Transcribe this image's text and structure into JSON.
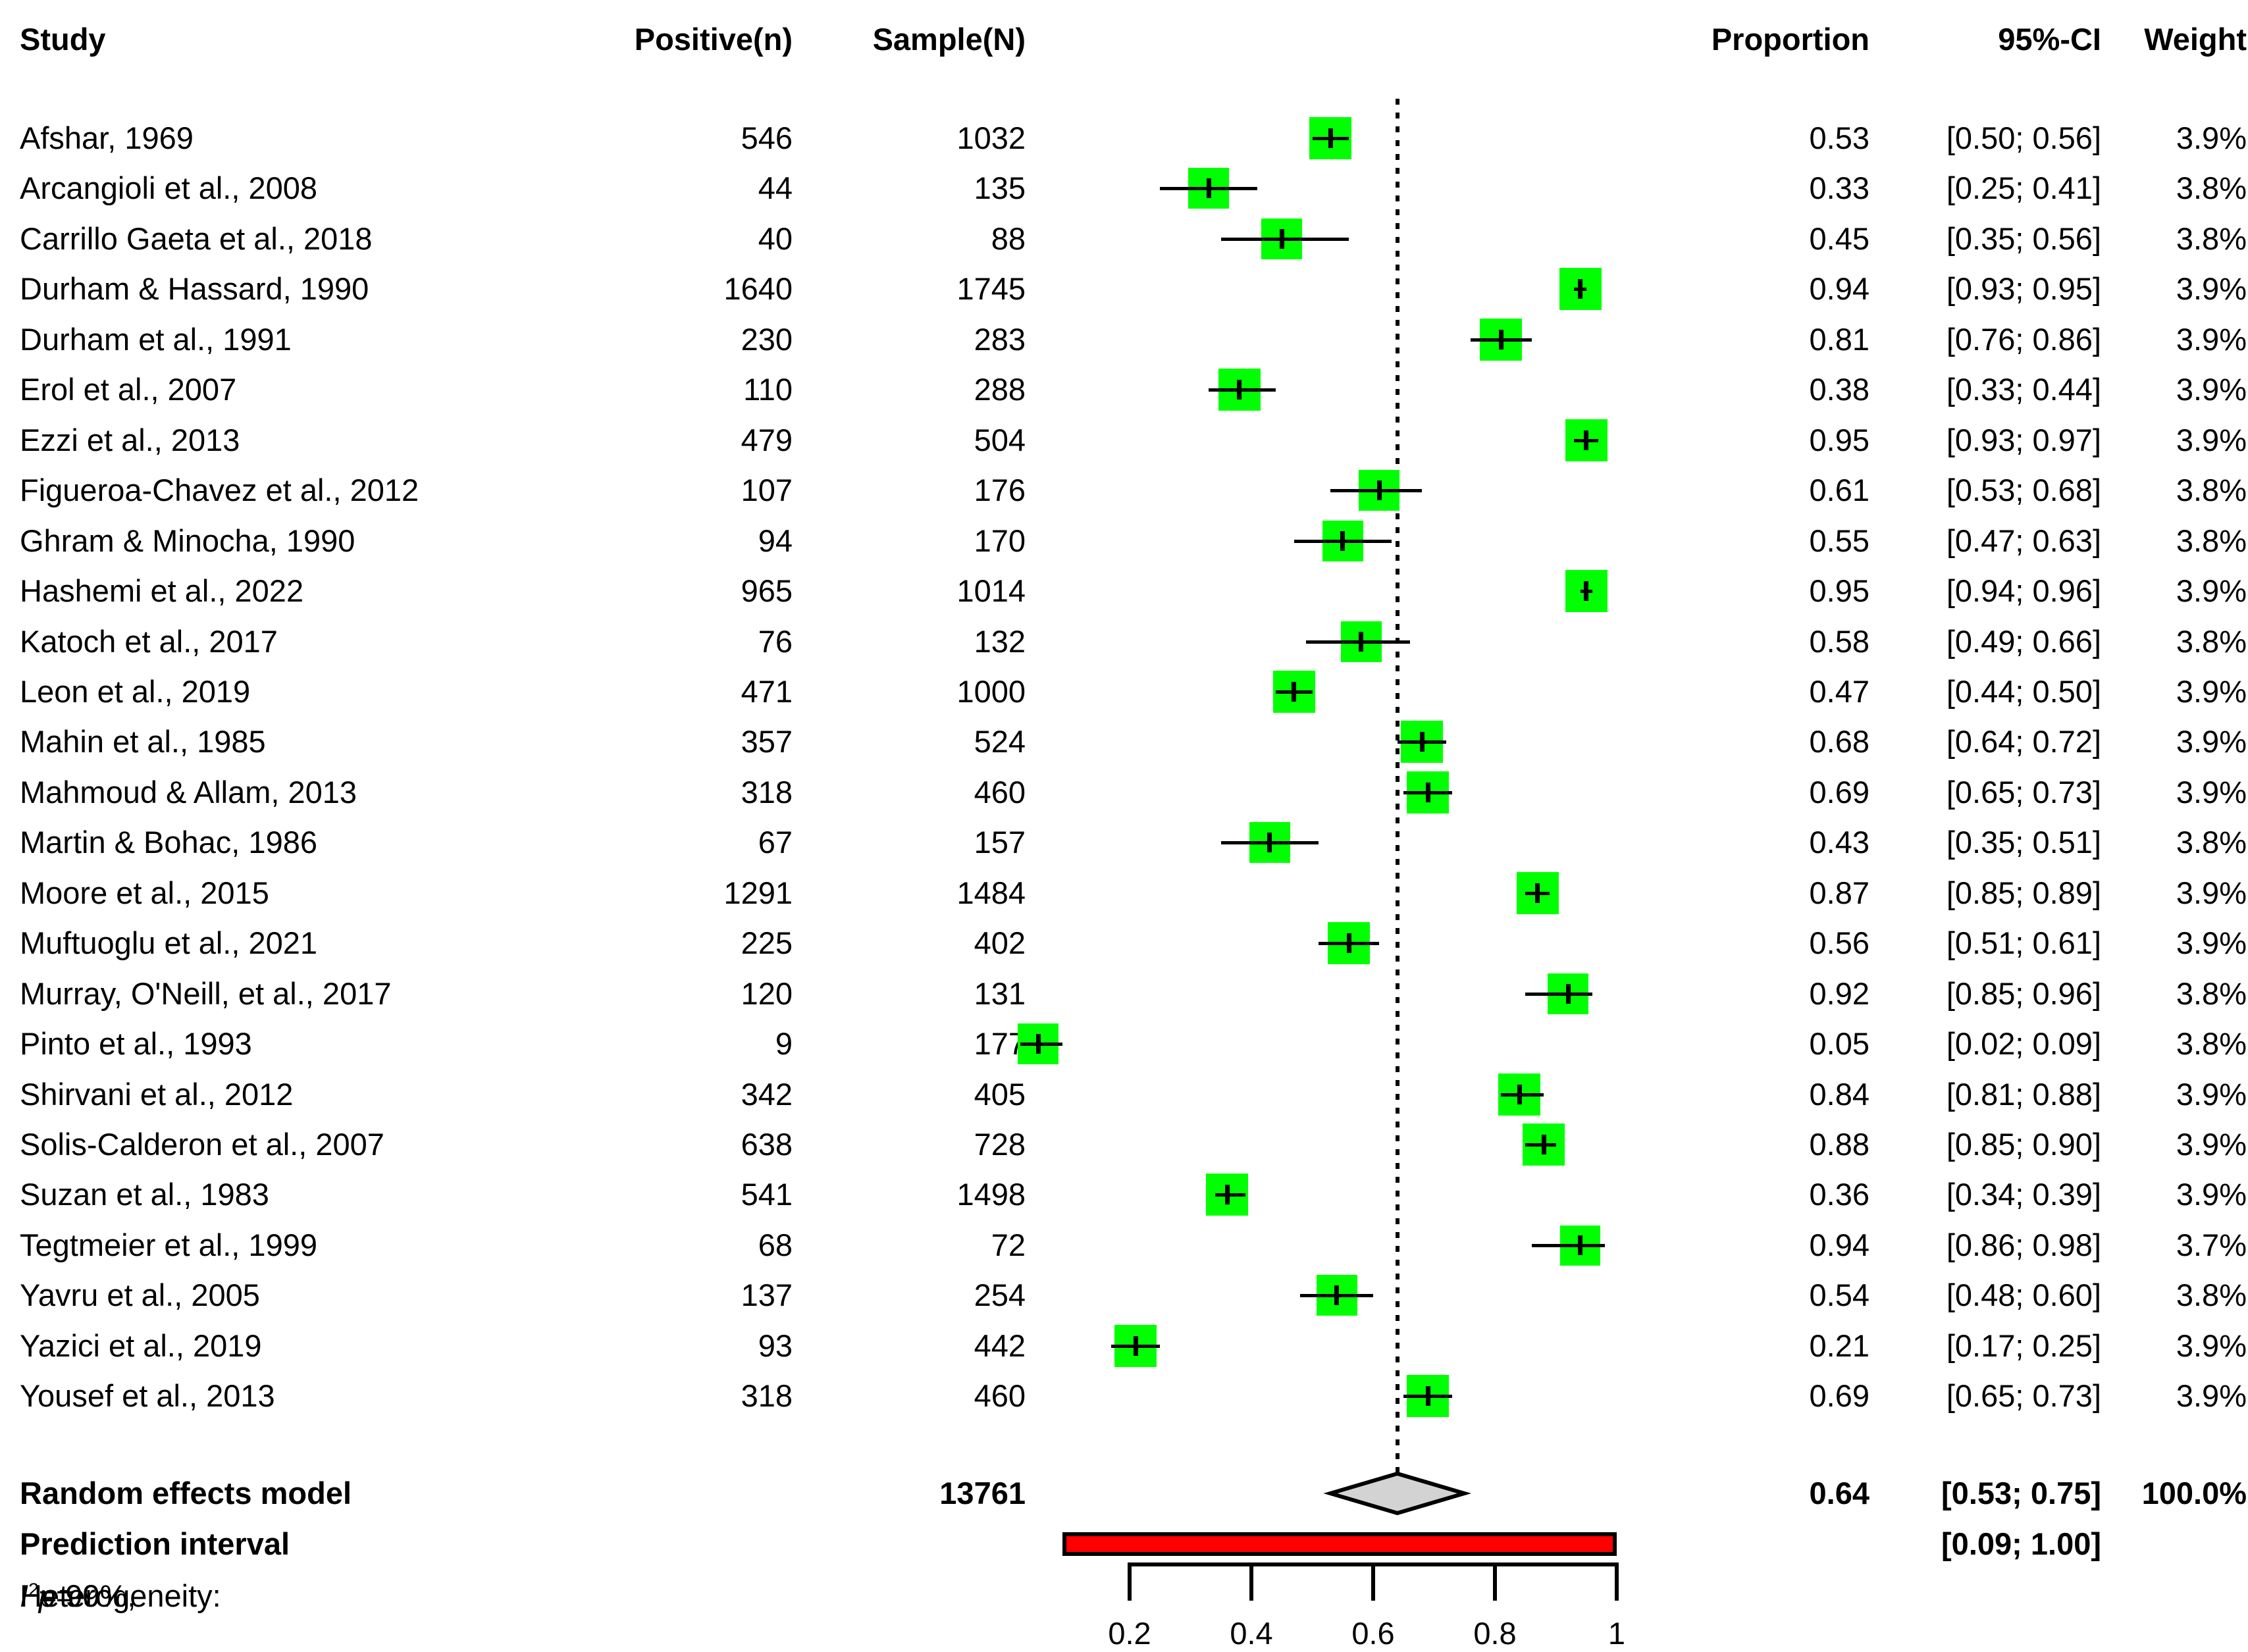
{
  "header": {
    "study": "Study",
    "positive": "Positive(n)",
    "sample": "Sample(N)",
    "proportion": "Proportion",
    "ci": "95%-CI",
    "weight": "Weight"
  },
  "chart_data": {
    "type": "forest",
    "x_axis": {
      "tick_values": [
        0.2,
        0.4,
        0.6,
        0.8,
        1
      ],
      "tick_labels": [
        "0.2",
        "0.4",
        "0.6",
        "0.8",
        "1"
      ],
      "reference_line": 0.64
    },
    "studies": [
      {
        "name": "Afshar, 1969",
        "positive": "546",
        "sample": "1032",
        "est": 0.53,
        "lo": 0.5,
        "hi": 0.56,
        "weight": 3.9
      },
      {
        "name": "Arcangioli et al., 2008",
        "positive": "44",
        "sample": "135",
        "est": 0.33,
        "lo": 0.25,
        "hi": 0.41,
        "weight": 3.8
      },
      {
        "name": "Carrillo Gaeta et al., 2018",
        "positive": "40",
        "sample": "88",
        "est": 0.45,
        "lo": 0.35,
        "hi": 0.56,
        "weight": 3.8
      },
      {
        "name": "Durham & Hassard, 1990",
        "positive": "1640",
        "sample": "1745",
        "est": 0.94,
        "lo": 0.93,
        "hi": 0.95,
        "weight": 3.9
      },
      {
        "name": "Durham et al., 1991",
        "positive": "230",
        "sample": "283",
        "est": 0.81,
        "lo": 0.76,
        "hi": 0.86,
        "weight": 3.9
      },
      {
        "name": "Erol et al., 2007",
        "positive": "110",
        "sample": "288",
        "est": 0.38,
        "lo": 0.33,
        "hi": 0.44,
        "weight": 3.9
      },
      {
        "name": "Ezzi et al., 2013",
        "positive": "479",
        "sample": "504",
        "est": 0.95,
        "lo": 0.93,
        "hi": 0.97,
        "weight": 3.9
      },
      {
        "name": "Figueroa-Chavez et al., 2012",
        "positive": "107",
        "sample": "176",
        "est": 0.61,
        "lo": 0.53,
        "hi": 0.68,
        "weight": 3.8
      },
      {
        "name": "Ghram & Minocha, 1990",
        "positive": "94",
        "sample": "170",
        "est": 0.55,
        "lo": 0.47,
        "hi": 0.63,
        "weight": 3.8
      },
      {
        "name": "Hashemi et al., 2022",
        "positive": "965",
        "sample": "1014",
        "est": 0.95,
        "lo": 0.94,
        "hi": 0.96,
        "weight": 3.9
      },
      {
        "name": "Katoch et al., 2017",
        "positive": "76",
        "sample": "132",
        "est": 0.58,
        "lo": 0.49,
        "hi": 0.66,
        "weight": 3.8
      },
      {
        "name": "Leon et al., 2019",
        "positive": "471",
        "sample": "1000",
        "est": 0.47,
        "lo": 0.44,
        "hi": 0.5,
        "weight": 3.9
      },
      {
        "name": "Mahin et al., 1985",
        "positive": "357",
        "sample": "524",
        "est": 0.68,
        "lo": 0.64,
        "hi": 0.72,
        "weight": 3.9
      },
      {
        "name": "Mahmoud & Allam, 2013",
        "positive": "318",
        "sample": "460",
        "est": 0.69,
        "lo": 0.65,
        "hi": 0.73,
        "weight": 3.9
      },
      {
        "name": "Martin & Bohac, 1986",
        "positive": "67",
        "sample": "157",
        "est": 0.43,
        "lo": 0.35,
        "hi": 0.51,
        "weight": 3.8
      },
      {
        "name": "Moore et al., 2015",
        "positive": "1291",
        "sample": "1484",
        "est": 0.87,
        "lo": 0.85,
        "hi": 0.89,
        "weight": 3.9
      },
      {
        "name": "Muftuoglu et al., 2021",
        "positive": "225",
        "sample": "402",
        "est": 0.56,
        "lo": 0.51,
        "hi": 0.61,
        "weight": 3.9
      },
      {
        "name": "Murray, O'Neill, et al., 2017",
        "positive": "120",
        "sample": "131",
        "est": 0.92,
        "lo": 0.85,
        "hi": 0.96,
        "weight": 3.8
      },
      {
        "name": "Pinto et al., 1993",
        "positive": "9",
        "sample": "177",
        "est": 0.05,
        "lo": 0.02,
        "hi": 0.09,
        "weight": 3.8
      },
      {
        "name": "Shirvani et al., 2012",
        "positive": "342",
        "sample": "405",
        "est": 0.84,
        "lo": 0.81,
        "hi": 0.88,
        "weight": 3.9
      },
      {
        "name": "Solis-Calderon et al., 2007",
        "positive": "638",
        "sample": "728",
        "est": 0.88,
        "lo": 0.85,
        "hi": 0.9,
        "weight": 3.9
      },
      {
        "name": "Suzan et al., 1983",
        "positive": "541",
        "sample": "1498",
        "est": 0.36,
        "lo": 0.34,
        "hi": 0.39,
        "weight": 3.9
      },
      {
        "name": "Tegtmeier et al., 1999",
        "positive": "68",
        "sample": "72",
        "est": 0.94,
        "lo": 0.86,
        "hi": 0.98,
        "weight": 3.7
      },
      {
        "name": "Yavru et al., 2005",
        "positive": "137",
        "sample": "254",
        "est": 0.54,
        "lo": 0.48,
        "hi": 0.6,
        "weight": 3.8
      },
      {
        "name": "Yazici et al., 2019",
        "positive": "93",
        "sample": "442",
        "est": 0.21,
        "lo": 0.17,
        "hi": 0.25,
        "weight": 3.9
      },
      {
        "name": "Yousef et al., 2013",
        "positive": "318",
        "sample": "460",
        "est": 0.69,
        "lo": 0.65,
        "hi": 0.73,
        "weight": 3.9
      }
    ],
    "summary": {
      "label": "Random effects model",
      "sample_total": "13761",
      "est": 0.64,
      "lo": 0.53,
      "hi": 0.75,
      "proportion_label": "0.64",
      "ci_label": "[0.53; 0.75]",
      "weight_label": "100.0%"
    },
    "prediction": {
      "label": "Prediction interval",
      "lo": 0.09,
      "hi": 1.0,
      "ci_label": "[0.09; 1.00]"
    },
    "heterogeneity": {
      "prefix": "Heterogeneity: ",
      "i": "I",
      "sup": "2",
      "mid": " = 99%, ",
      "p": "p",
      "suffix": " = 0"
    },
    "colors": {
      "square": "#00ff00",
      "diamond": "#d3d3d3",
      "prediction_bar": "#ff0000",
      "line": "#000000"
    }
  }
}
